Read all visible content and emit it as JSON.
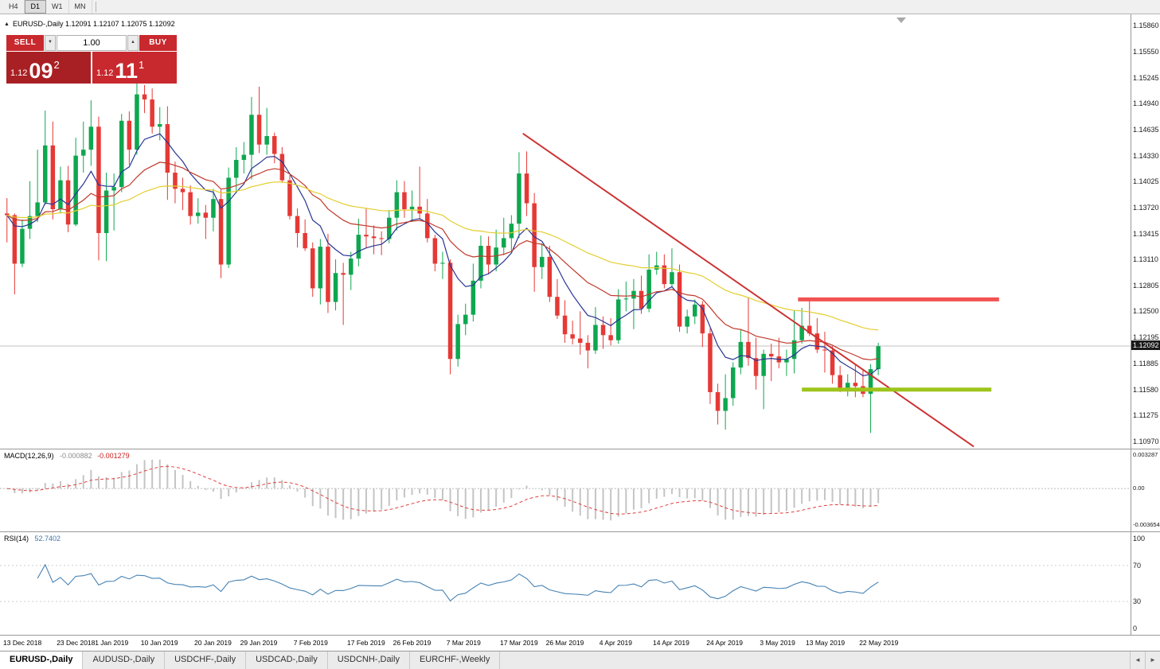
{
  "toolbar": {
    "timeframes": [
      {
        "label": "H4",
        "active": false
      },
      {
        "label": "D1",
        "active": true
      },
      {
        "label": "W1",
        "active": false
      },
      {
        "label": "MN",
        "active": false
      }
    ]
  },
  "chart_header": {
    "collapse_arrow": "▲",
    "title": "EURUSD-,Daily 1.12091 1.12107 1.12075 1.12092"
  },
  "trade_panel": {
    "sell_label": "SELL",
    "buy_label": "BUY",
    "volume": "1.00",
    "spin_down": "▼",
    "spin_up": "▲",
    "sell_price": {
      "prefix": "1.12",
      "big": "09",
      "sup": "2"
    },
    "buy_price": {
      "prefix": "1.12",
      "big": "11",
      "sup": "1"
    }
  },
  "colors": {
    "bull": "#0ea74f",
    "bear": "#e53935",
    "ma_fast": "#283593",
    "ma_mid": "#c0392b",
    "ma_slow": "#e3ce2f",
    "trendline": "#cc3333",
    "resistance": "#f25252",
    "support": "#9ec41a",
    "macd_hist": "#c4c4c4",
    "macd_signal": "#e04040",
    "rsi_line": "#4682b4",
    "bid_line": "#c0c0c0",
    "bid_tag_bg": "#1a1a1a"
  },
  "chart_data": {
    "type": "candlestick",
    "symbol": "EURUSD-",
    "timeframe": "Daily",
    "bid": 1.12092,
    "bid_label": "1.12092",
    "price_axis_labels": [
      "1.15860",
      "1.15550",
      "1.15245",
      "1.14940",
      "1.14635",
      "1.14330",
      "1.14025",
      "1.13720",
      "1.13415",
      "1.13110",
      "1.12805",
      "1.12500",
      "1.12195",
      "1.11885",
      "1.11580",
      "1.11275",
      "1.10970"
    ],
    "date_ticks": [
      {
        "label": "13 Dec 2018",
        "index": 0
      },
      {
        "label": "23 Dec 2018",
        "index": 7
      },
      {
        "label": "1 Jan 2019",
        "index": 12
      },
      {
        "label": "10 Jan 2019",
        "index": 18
      },
      {
        "label": "20 Jan 2019",
        "index": 25
      },
      {
        "label": "29 Jan 2019",
        "index": 31
      },
      {
        "label": "7 Feb 2019",
        "index": 38
      },
      {
        "label": "17 Feb 2019",
        "index": 45
      },
      {
        "label": "26 Feb 2019",
        "index": 51
      },
      {
        "label": "7 Mar 2019",
        "index": 58
      },
      {
        "label": "17 Mar 2019",
        "index": 65
      },
      {
        "label": "26 Mar 2019",
        "index": 71
      },
      {
        "label": "4 Apr 2019",
        "index": 78
      },
      {
        "label": "14 Apr 2019",
        "index": 85
      },
      {
        "label": "24 Apr 2019",
        "index": 92
      },
      {
        "label": "3 May 2019",
        "index": 99
      },
      {
        "label": "13 May 2019",
        "index": 105
      },
      {
        "label": "22 May 2019",
        "index": 112
      }
    ],
    "candles": [
      [
        "13 Dec",
        1.1365,
        1.1383,
        1.1331,
        1.1363
      ],
      [
        "14 Dec",
        1.1363,
        1.1365,
        1.127,
        1.1306
      ],
      [
        "17 Dec",
        1.1306,
        1.1358,
        1.1302,
        1.1347
      ],
      [
        "18 Dec",
        1.1347,
        1.1403,
        1.1335,
        1.1362
      ],
      [
        "19 Dec",
        1.1362,
        1.144,
        1.1355,
        1.1378
      ],
      [
        "20 Dec",
        1.1378,
        1.1486,
        1.1375,
        1.1445
      ],
      [
        "21 Dec",
        1.1445,
        1.1473,
        1.1358,
        1.137
      ],
      [
        "24 Dec",
        1.137,
        1.142,
        1.1365,
        1.1404
      ],
      [
        "26 Dec",
        1.1404,
        1.1421,
        1.1343,
        1.1352
      ],
      [
        "27 Dec",
        1.1352,
        1.1454,
        1.135,
        1.1433
      ],
      [
        "28 Dec",
        1.1433,
        1.1473,
        1.1413,
        1.144
      ],
      [
        "31 Dec",
        1.144,
        1.1498,
        1.1421,
        1.1467
      ],
      [
        "2 Jan",
        1.1467,
        1.1479,
        1.131,
        1.1342
      ],
      [
        "3 Jan",
        1.1342,
        1.1413,
        1.1309,
        1.1392
      ],
      [
        "4 Jan",
        1.1392,
        1.1412,
        1.1345,
        1.1396
      ],
      [
        "7 Jan",
        1.1396,
        1.1482,
        1.139,
        1.1474
      ],
      [
        "8 Jan",
        1.1474,
        1.1485,
        1.1422,
        1.144
      ],
      [
        "9 Jan",
        1.144,
        1.152,
        1.1434,
        1.1505
      ],
      [
        "10 Jan",
        1.1505,
        1.1516,
        1.1483,
        1.1499
      ],
      [
        "11 Jan",
        1.1499,
        1.1512,
        1.1459,
        1.1467
      ],
      [
        "14 Jan",
        1.1467,
        1.149,
        1.1451,
        1.147
      ],
      [
        "15 Jan",
        1.147,
        1.1491,
        1.1381,
        1.1413
      ],
      [
        "16 Jan",
        1.1413,
        1.1426,
        1.1377,
        1.1394
      ],
      [
        "17 Jan",
        1.1394,
        1.1407,
        1.1369,
        1.139
      ],
      [
        "18 Jan",
        1.139,
        1.1398,
        1.1352,
        1.1362
      ],
      [
        "21 Jan",
        1.1362,
        1.1383,
        1.1353,
        1.1366
      ],
      [
        "22 Jan",
        1.1366,
        1.1375,
        1.1335,
        1.136
      ],
      [
        "23 Jan",
        1.136,
        1.1394,
        1.1344,
        1.1382
      ],
      [
        "24 Jan",
        1.1382,
        1.1393,
        1.1289,
        1.1305
      ],
      [
        "25 Jan",
        1.1305,
        1.1419,
        1.1301,
        1.1407
      ],
      [
        "28 Jan",
        1.1407,
        1.1443,
        1.139,
        1.1428
      ],
      [
        "29 Jan",
        1.1428,
        1.1449,
        1.1412,
        1.1434
      ],
      [
        "30 Jan",
        1.1434,
        1.1502,
        1.1405,
        1.1481
      ],
      [
        "31 Jan",
        1.1481,
        1.1514,
        1.1436,
        1.1446
      ],
      [
        "1 Feb",
        1.1446,
        1.1489,
        1.1434,
        1.1456
      ],
      [
        "4 Feb",
        1.1456,
        1.146,
        1.1424,
        1.1435
      ],
      [
        "5 Feb",
        1.1435,
        1.1443,
        1.1401,
        1.1404
      ],
      [
        "6 Feb",
        1.1404,
        1.141,
        1.1358,
        1.1362
      ],
      [
        "7 Feb",
        1.1362,
        1.1371,
        1.1325,
        1.1342
      ],
      [
        "8 Feb",
        1.1342,
        1.1358,
        1.1321,
        1.1324
      ],
      [
        "11 Feb",
        1.1324,
        1.1331,
        1.1267,
        1.1277
      ],
      [
        "12 Feb",
        1.1277,
        1.1335,
        1.1258,
        1.1326
      ],
      [
        "13 Feb",
        1.1326,
        1.1341,
        1.1248,
        1.1261
      ],
      [
        "14 Feb",
        1.1261,
        1.1311,
        1.1251,
        1.1295
      ],
      [
        "15 Feb",
        1.1295,
        1.1307,
        1.1234,
        1.1293
      ],
      [
        "18 Feb",
        1.1293,
        1.132,
        1.1275,
        1.1312
      ],
      [
        "19 Feb",
        1.1312,
        1.1359,
        1.1303,
        1.134
      ],
      [
        "20 Feb",
        1.134,
        1.1371,
        1.1324,
        1.1338
      ],
      [
        "21 Feb",
        1.1338,
        1.1351,
        1.1317,
        1.1336
      ],
      [
        "22 Feb",
        1.1336,
        1.1344,
        1.1316,
        1.1335
      ],
      [
        "25 Feb",
        1.1335,
        1.1369,
        1.133,
        1.136
      ],
      [
        "26 Feb",
        1.136,
        1.1404,
        1.1345,
        1.139
      ],
      [
        "27 Feb",
        1.139,
        1.1403,
        1.136,
        1.137
      ],
      [
        "28 Feb",
        1.137,
        1.1392,
        1.1355,
        1.1373
      ],
      [
        "1 Mar",
        1.1373,
        1.142,
        1.1358,
        1.1365
      ],
      [
        "4 Mar",
        1.1365,
        1.1382,
        1.1331,
        1.1336
      ],
      [
        "5 Mar",
        1.1336,
        1.134,
        1.1297,
        1.1306
      ],
      [
        "6 Mar",
        1.1306,
        1.132,
        1.1288,
        1.1307
      ],
      [
        "7 Mar",
        1.1307,
        1.1311,
        1.1176,
        1.1194
      ],
      [
        "8 Mar",
        1.1194,
        1.1246,
        1.1185,
        1.1235
      ],
      [
        "11 Mar",
        1.1235,
        1.1259,
        1.1222,
        1.1246
      ],
      [
        "12 Mar",
        1.1246,
        1.1306,
        1.1238,
        1.1286
      ],
      [
        "13 Mar",
        1.1286,
        1.1339,
        1.1277,
        1.1327
      ],
      [
        "14 Mar",
        1.1327,
        1.1338,
        1.1294,
        1.1305
      ],
      [
        "15 Mar",
        1.1305,
        1.1346,
        1.1297,
        1.1325
      ],
      [
        "18 Mar",
        1.1325,
        1.136,
        1.1316,
        1.1336
      ],
      [
        "19 Mar",
        1.1336,
        1.1363,
        1.1321,
        1.1353
      ],
      [
        "20 Mar",
        1.1353,
        1.1437,
        1.1336,
        1.1412
      ],
      [
        "21 Mar",
        1.1412,
        1.1438,
        1.1362,
        1.1377
      ],
      [
        "22 Mar",
        1.1377,
        1.1389,
        1.1273,
        1.1302
      ],
      [
        "25 Mar",
        1.1302,
        1.133,
        1.1288,
        1.1314
      ],
      [
        "26 Mar",
        1.1314,
        1.1327,
        1.1261,
        1.1267
      ],
      [
        "27 Mar",
        1.1267,
        1.1288,
        1.1241,
        1.1245
      ],
      [
        "28 Mar",
        1.1245,
        1.1263,
        1.1213,
        1.1223
      ],
      [
        "29 Mar",
        1.1223,
        1.1239,
        1.1211,
        1.1218
      ],
      [
        "1 Apr",
        1.1218,
        1.125,
        1.1199,
        1.1213
      ],
      [
        "2 Apr",
        1.1213,
        1.1222,
        1.1183,
        1.1204
      ],
      [
        "3 Apr",
        1.1204,
        1.1255,
        1.12,
        1.1234
      ],
      [
        "4 Apr",
        1.1234,
        1.1244,
        1.1206,
        1.1222
      ],
      [
        "5 Apr",
        1.1222,
        1.1242,
        1.121,
        1.1216
      ],
      [
        "8 Apr",
        1.1216,
        1.1276,
        1.1212,
        1.1264
      ],
      [
        "9 Apr",
        1.1264,
        1.1285,
        1.125,
        1.1265
      ],
      [
        "10 Apr",
        1.1265,
        1.1288,
        1.1229,
        1.1274
      ],
      [
        "11 Apr",
        1.1274,
        1.1292,
        1.1247,
        1.1253
      ],
      [
        "12 Apr",
        1.1253,
        1.1317,
        1.1249,
        1.1299
      ],
      [
        "15 Apr",
        1.1299,
        1.132,
        1.1293,
        1.1304
      ],
      [
        "16 Apr",
        1.1304,
        1.1317,
        1.1277,
        1.1282
      ],
      [
        "17 Apr",
        1.1282,
        1.1324,
        1.1278,
        1.1296
      ],
      [
        "18 Apr",
        1.1296,
        1.1305,
        1.1226,
        1.1232
      ],
      [
        "19 Apr",
        1.1232,
        1.1252,
        1.1224,
        1.1244
      ],
      [
        "22 Apr",
        1.1244,
        1.1264,
        1.1235,
        1.1258
      ],
      [
        "23 Apr",
        1.1258,
        1.1262,
        1.1208,
        1.1224
      ],
      [
        "24 Apr",
        1.1224,
        1.123,
        1.1141,
        1.1155
      ],
      [
        "25 Apr",
        1.1155,
        1.1165,
        1.1117,
        1.1133
      ],
      [
        "26 Apr",
        1.1133,
        1.1176,
        1.1111,
        1.1148
      ],
      [
        "29 Apr",
        1.1148,
        1.119,
        1.1139,
        1.1184
      ],
      [
        "30 Apr",
        1.1184,
        1.1228,
        1.1176,
        1.1214
      ],
      [
        "1 May",
        1.1214,
        1.1266,
        1.1186,
        1.1195
      ],
      [
        "2 May",
        1.1195,
        1.1219,
        1.1158,
        1.1174
      ],
      [
        "3 May",
        1.1174,
        1.1205,
        1.1135,
        1.12
      ],
      [
        "6 May",
        1.12,
        1.1212,
        1.1168,
        1.1197
      ],
      [
        "7 May",
        1.1197,
        1.1219,
        1.1183,
        1.119
      ],
      [
        "8 May",
        1.119,
        1.1205,
        1.1174,
        1.1194
      ],
      [
        "9 May",
        1.1194,
        1.1251,
        1.1177,
        1.1216
      ],
      [
        "10 May",
        1.1216,
        1.1254,
        1.1212,
        1.1233
      ],
      [
        "13 May",
        1.1233,
        1.1264,
        1.1221,
        1.1224
      ],
      [
        "14 May",
        1.1224,
        1.1242,
        1.1201,
        1.1205
      ],
      [
        "15 May",
        1.1205,
        1.1226,
        1.1178,
        1.1204
      ],
      [
        "16 May",
        1.1204,
        1.1209,
        1.1165,
        1.1175
      ],
      [
        "17 May",
        1.1175,
        1.1186,
        1.1155,
        1.1158
      ],
      [
        "20 May",
        1.1158,
        1.1176,
        1.115,
        1.1166
      ],
      [
        "21 May",
        1.1166,
        1.1188,
        1.1149,
        1.1162
      ],
      [
        "22 May",
        1.1162,
        1.1181,
        1.1149,
        1.1153
      ],
      [
        "23 May",
        1.1153,
        1.1188,
        1.1107,
        1.1182
      ],
      [
        "24 May",
        1.1182,
        1.1213,
        1.1175,
        1.1209
      ]
    ],
    "moving_averages": [
      {
        "period": 8,
        "color_key": "ma_fast"
      },
      {
        "period": 21,
        "color_key": "ma_mid"
      },
      {
        "period": 50,
        "color_key": "ma_slow"
      }
    ],
    "overlays": {
      "trendline": {
        "from_index": 67.5,
        "from_price": 1.1459,
        "to_index": 126.5,
        "to_price": 1.1091
      },
      "resistance_line": {
        "price": 1.1264,
        "from_index": 103.5,
        "to_index": 129.8
      },
      "support_line": {
        "price": 1.1158,
        "from_index": 104,
        "to_index": 128.8
      }
    }
  },
  "macd": {
    "label": "MACD(12,26,9)",
    "value": "-0.000882",
    "signal_value": "-0.001279",
    "axis_max": "0.003287",
    "axis_zero": "0.00",
    "axis_min": "-0.003654",
    "fast": 12,
    "slow": 26,
    "signal": 9
  },
  "rsi": {
    "label": "RSI(14)",
    "value": "52.7402",
    "period": 14,
    "axis_labels": [
      100,
      70,
      30,
      0
    ],
    "levels": [
      70,
      30
    ]
  },
  "tabs": {
    "items": [
      {
        "label": "EURUSD-,Daily",
        "active": true
      },
      {
        "label": "AUDUSD-,Daily",
        "active": false
      },
      {
        "label": "USDCHF-,Daily",
        "active": false
      },
      {
        "label": "USDCAD-,Daily",
        "active": false
      },
      {
        "label": "USDCNH-,Daily",
        "active": false
      },
      {
        "label": "EURCHF-,Weekly",
        "active": false
      }
    ],
    "scroll_left": "◄",
    "scroll_right": "►"
  }
}
